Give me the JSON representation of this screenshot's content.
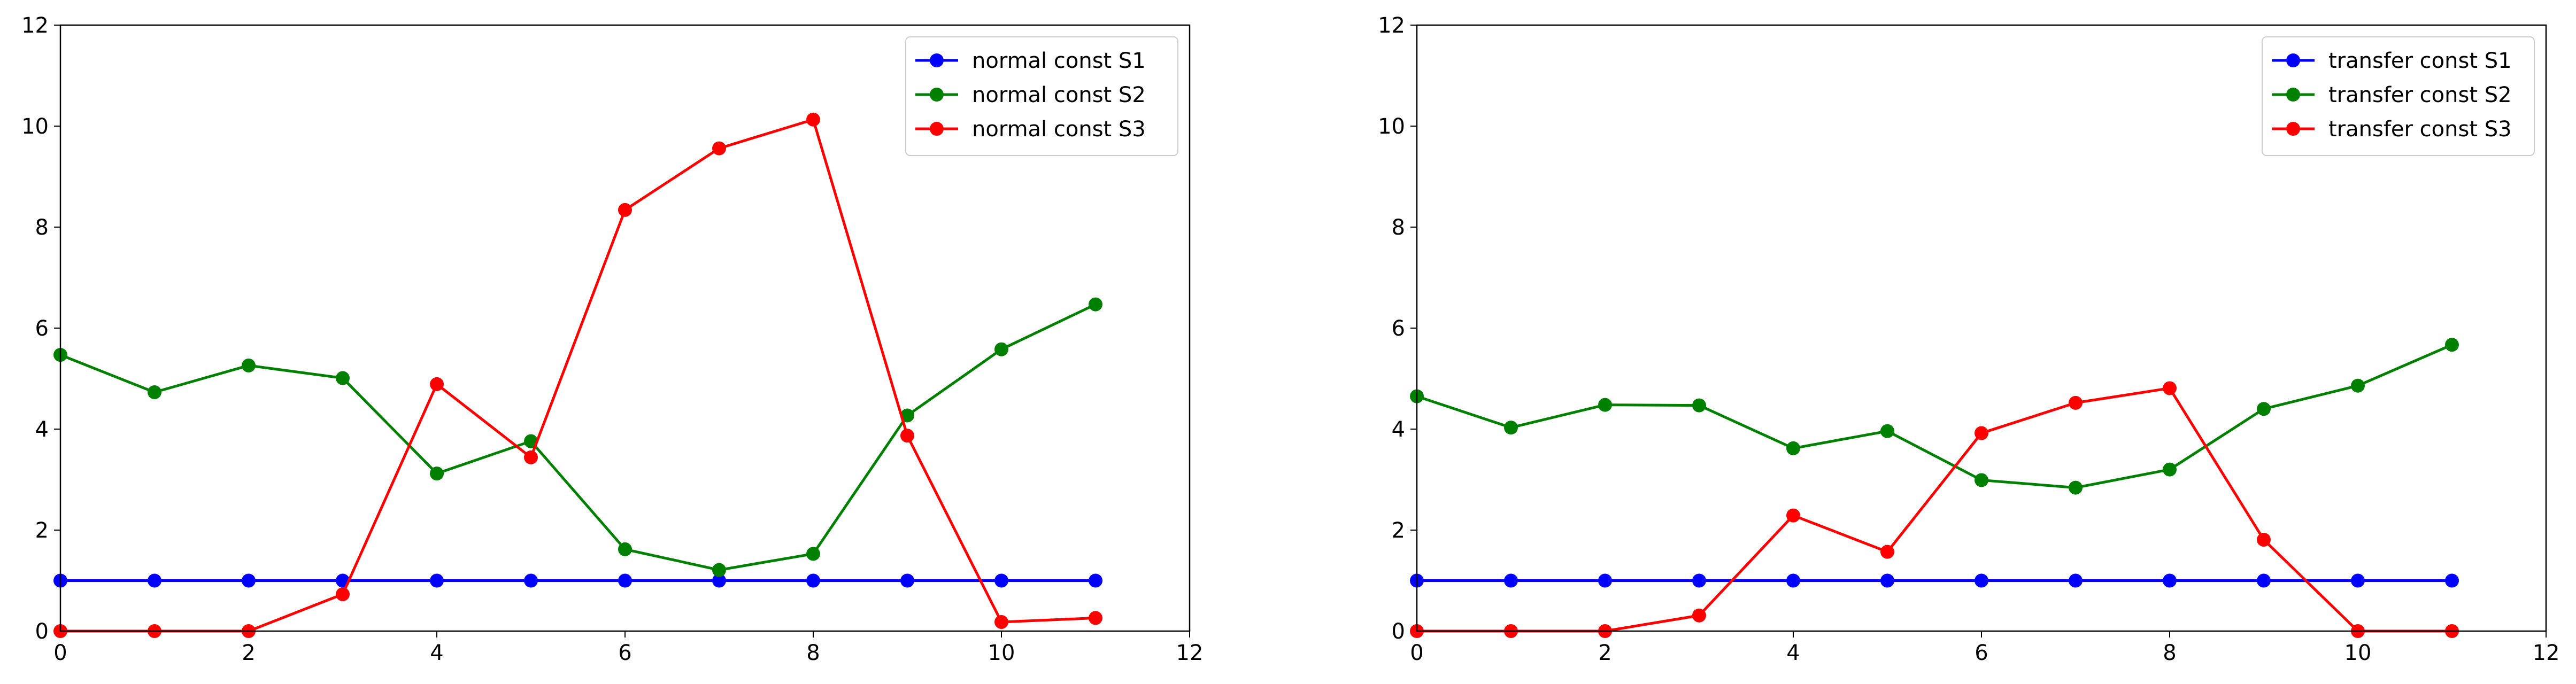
{
  "colors": {
    "S1": "#0000ff",
    "S2": "#008000",
    "S3": "#ff0000",
    "axis": "#000000",
    "legend_border": "#cccccc",
    "background": "#ffffff"
  },
  "chart_data": [
    {
      "type": "line",
      "xlim": [
        0,
        12
      ],
      "ylim": [
        0,
        12
      ],
      "xticks": [
        "0",
        "2",
        "4",
        "6",
        "8",
        "10",
        "12"
      ],
      "yticks": [
        "0",
        "2",
        "4",
        "6",
        "8",
        "10",
        "12"
      ],
      "grid": false,
      "legend_position": "top-right",
      "marker": "circle",
      "x": [
        0,
        1,
        2,
        3,
        4,
        5,
        6,
        7,
        8,
        9,
        10,
        11
      ],
      "series": [
        {
          "name": "normal const S1",
          "color": "#0000ff",
          "values": [
            1,
            1,
            1,
            1,
            1,
            1,
            1,
            1,
            1,
            1,
            1,
            1
          ]
        },
        {
          "name": "normal const S2",
          "color": "#008000",
          "values": [
            5.47,
            4.73,
            5.26,
            5.01,
            3.12,
            3.76,
            1.62,
            1.21,
            1.53,
            4.27,
            5.58,
            6.47
          ]
        },
        {
          "name": "normal const S3",
          "color": "#ff0000",
          "values": [
            0,
            0,
            0,
            0.73,
            4.89,
            3.44,
            8.34,
            9.56,
            10.13,
            3.87,
            0.18,
            0.26
          ]
        }
      ]
    },
    {
      "type": "line",
      "xlim": [
        0,
        12
      ],
      "ylim": [
        0,
        12
      ],
      "xticks": [
        "0",
        "2",
        "4",
        "6",
        "8",
        "10",
        "12"
      ],
      "yticks": [
        "0",
        "2",
        "4",
        "6",
        "8",
        "10",
        "12"
      ],
      "grid": false,
      "legend_position": "top-right",
      "marker": "circle",
      "x": [
        0,
        1,
        2,
        3,
        4,
        5,
        6,
        7,
        8,
        9,
        10,
        11
      ],
      "series": [
        {
          "name": "transfer const S1",
          "color": "#0000ff",
          "values": [
            1,
            1,
            1,
            1,
            1,
            1,
            1,
            1,
            1,
            1,
            1,
            1
          ]
        },
        {
          "name": "transfer const S2",
          "color": "#008000",
          "values": [
            4.65,
            4.03,
            4.48,
            4.47,
            3.62,
            3.96,
            2.99,
            2.84,
            3.2,
            4.4,
            4.86,
            5.67
          ]
        },
        {
          "name": "transfer const S3",
          "color": "#ff0000",
          "values": [
            0,
            0,
            0,
            0.31,
            2.29,
            1.57,
            3.92,
            4.52,
            4.81,
            1.81,
            0,
            0
          ]
        }
      ]
    }
  ]
}
